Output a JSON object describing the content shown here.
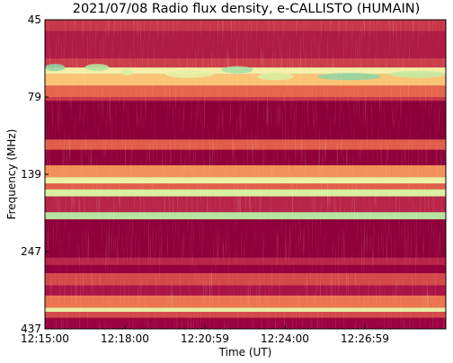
{
  "chart_data": {
    "type": "heatmap",
    "title": "2021/07/08  Radio flux density, e-CALLISTO (HUMAIN)",
    "xlabel": "Time (UT)",
    "ylabel": "Frequency (MHz)",
    "x_ticks": [
      "12:15:00",
      "12:18:00",
      "12:20:59",
      "12:24:00",
      "12:26:59"
    ],
    "y_ticks": [
      "45",
      "79",
      "139",
      "247",
      "437"
    ],
    "ylim": [
      45,
      437
    ],
    "y_axis_inverted": true,
    "colormap": "spectral",
    "colors": {
      "background": "#9a0041",
      "dark": "#8a0038",
      "mid": "#c3304a",
      "warm": "#e8684a",
      "hot": "#fbb868",
      "bright": "#fef0a8",
      "peak": "#d6f0a0",
      "cool": "#6cc7a4"
    },
    "bands": [
      {
        "freq_low": 45,
        "freq_high": 50,
        "level": 0.3
      },
      {
        "freq_low": 50,
        "freq_high": 62,
        "level": 0.22
      },
      {
        "freq_low": 62,
        "freq_high": 66,
        "level": 0.32
      },
      {
        "freq_low": 66,
        "freq_high": 69,
        "level": 0.75
      },
      {
        "freq_low": 69,
        "freq_high": 74,
        "level": 0.6
      },
      {
        "freq_low": 74,
        "freq_high": 79,
        "level": 0.42
      },
      {
        "freq_low": 79,
        "freq_high": 82,
        "level": 0.3
      },
      {
        "freq_low": 82,
        "freq_high": 112,
        "level": 0.02
      },
      {
        "freq_low": 112,
        "freq_high": 120,
        "level": 0.4
      },
      {
        "freq_low": 120,
        "freq_high": 132,
        "level": 0.05
      },
      {
        "freq_low": 132,
        "freq_high": 143,
        "level": 0.5
      },
      {
        "freq_low": 143,
        "freq_high": 152,
        "level": 0.78
      },
      {
        "freq_low": 152,
        "freq_high": 160,
        "level": 0.4
      },
      {
        "freq_low": 160,
        "freq_high": 170,
        "level": 0.85
      },
      {
        "freq_low": 170,
        "freq_high": 192,
        "level": 0.25
      },
      {
        "freq_low": 192,
        "freq_high": 202,
        "level": 0.9
      },
      {
        "freq_low": 202,
        "freq_high": 262,
        "level": 0.05
      },
      {
        "freq_low": 262,
        "freq_high": 280,
        "level": 0.25
      },
      {
        "freq_low": 280,
        "freq_high": 300,
        "level": 0.1
      },
      {
        "freq_low": 300,
        "freq_high": 330,
        "level": 0.35
      },
      {
        "freq_low": 330,
        "freq_high": 355,
        "level": 0.2
      },
      {
        "freq_low": 355,
        "freq_high": 385,
        "level": 0.45
      },
      {
        "freq_low": 385,
        "freq_high": 395,
        "level": 0.8
      },
      {
        "freq_low": 395,
        "freq_high": 410,
        "level": 0.35
      },
      {
        "freq_low": 410,
        "freq_high": 437,
        "level": 0.15
      }
    ],
    "bursts": [
      {
        "t_start": 0.0,
        "t_end": 0.05,
        "freq": 66,
        "level": 0.95
      },
      {
        "t_start": 0.1,
        "t_end": 0.16,
        "freq": 66,
        "level": 0.9
      },
      {
        "t_start": 0.19,
        "t_end": 0.22,
        "freq": 68,
        "level": 0.85
      },
      {
        "t_start": 0.3,
        "t_end": 0.42,
        "freq": 69,
        "level": 0.8
      },
      {
        "t_start": 0.44,
        "t_end": 0.52,
        "freq": 67,
        "level": 0.92
      },
      {
        "t_start": 0.53,
        "t_end": 0.62,
        "freq": 70,
        "level": 0.85
      },
      {
        "t_start": 0.68,
        "t_end": 0.84,
        "freq": 70,
        "level": 0.95
      },
      {
        "t_start": 0.86,
        "t_end": 1.0,
        "freq": 69,
        "level": 0.88
      }
    ]
  }
}
